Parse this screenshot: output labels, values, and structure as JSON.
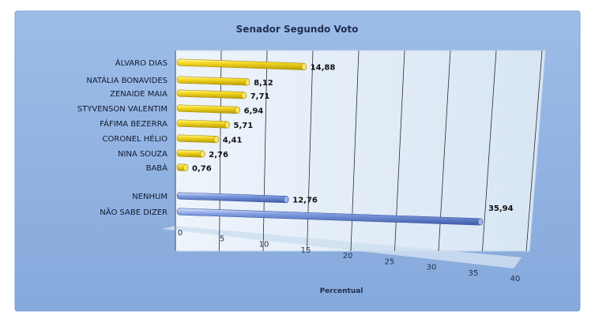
{
  "chart_data": {
    "type": "bar",
    "orientation": "horizontal",
    "title": "Senador Segundo Voto",
    "xlabel": "Percentual",
    "ylabel": "",
    "xlim": [
      0,
      40
    ],
    "x_ticks": [
      "0",
      "5",
      "10",
      "15",
      "20",
      "25",
      "30",
      "35",
      "40"
    ],
    "grid": true,
    "style": "3d-cylinder",
    "categories": [
      "ÁLVARO DIAS",
      "NATÁLIA BONAVIDES",
      "ZENAIDE MAIA",
      "STYVENSON VALENTIM",
      "FÁFIMA BEZERRA",
      "CORONEL HÉLIO",
      "NINA SOUZA",
      "BABÁ",
      "NENHUM",
      "NÃO SABE DIZER"
    ],
    "values": [
      14.88,
      8.12,
      7.71,
      6.94,
      5.71,
      4.41,
      2.76,
      0.76,
      12.76,
      35.94
    ],
    "value_labels": [
      "14,88",
      "8,12",
      "7,71",
      "6,94",
      "5,71",
      "4,41",
      "2,76",
      "0,76",
      "12,76",
      "35,94"
    ],
    "bar_colors": [
      "#f2d21b",
      "#f2d21b",
      "#f2d21b",
      "#f2d21b",
      "#f2d21b",
      "#f2d21b",
      "#f2d21b",
      "#f2d21b",
      "#6f8ed4",
      "#6f8ed4"
    ]
  },
  "colors": {
    "frame": "#8fb3e3",
    "frame_border": "#6f97cf",
    "plot_back": "#dfeaf6",
    "candidate_bar": "#f2d21b",
    "other_bar": "#6f8ed4"
  }
}
